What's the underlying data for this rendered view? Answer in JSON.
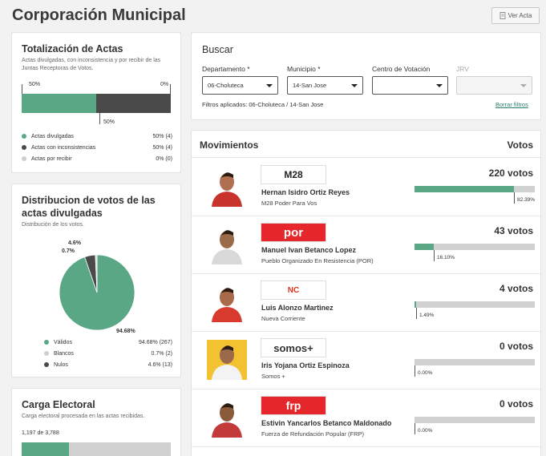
{
  "page": {
    "title": "Corporación Municipal",
    "ver_acta_label": "Ver Acta"
  },
  "totalizacion": {
    "title": "Totalización de Actas",
    "subtitle": "Actas divulgadas, con inconsistencia y por recibir de las Juntas Receptoras de Votos.",
    "label_top_left": "50%",
    "label_top_right": "0%",
    "label_bottom": "50%",
    "bar_fractions": {
      "divulgadas": 0.5,
      "inconsistencias": 0.5,
      "por_recibir": 0.0
    },
    "legend": [
      {
        "label": "Actas divulgadas",
        "value": "50% (4)",
        "color": "#5aa785"
      },
      {
        "label": "Actas con inconsistencias",
        "value": "50% (4)",
        "color": "#4a4a4a"
      },
      {
        "label": "Actas por recibir",
        "value": "0% (0)",
        "color": "#cfcfcf"
      }
    ]
  },
  "distribucion": {
    "title": "Distribucion de votos de las actas divulgadas",
    "subtitle": "Distribución de los votos.",
    "pie_labels": {
      "validos": "94.68%",
      "blancos": "0.7%",
      "nulos": "4.6%"
    },
    "legend": [
      {
        "label": "Válidos",
        "value": "94.68% (267)",
        "color": "#5aa785"
      },
      {
        "label": "Blancos",
        "value": "0.7% (2)",
        "color": "#cfcfcf"
      },
      {
        "label": "Nulos",
        "value": "4.6% (13)",
        "color": "#4a4a4a"
      }
    ]
  },
  "chart_data": {
    "type": "pie",
    "title": "Distribucion de votos de las actas divulgadas",
    "labels": [
      "Válidos",
      "Blancos",
      "Nulos"
    ],
    "values": [
      94.68,
      0.7,
      4.6
    ],
    "counts": [
      267,
      2,
      13
    ],
    "colors": [
      "#5aa785",
      "#d1d1d1",
      "#4a4a4a"
    ]
  },
  "carga": {
    "title": "Carga Electoral",
    "subtitle": "Carga electoral procesada en las actas recibidas.",
    "count_text": "1,197 de 3,788",
    "progress_fraction": 0.316
  },
  "buscar": {
    "title": "Buscar",
    "fields": [
      {
        "label": "Departamento *",
        "value": "06-Choluteca"
      },
      {
        "label": "Municipio *",
        "value": "14-San Jose"
      },
      {
        "label": "Centro de Votación",
        "value": ""
      },
      {
        "label": "JRV",
        "value": ""
      }
    ],
    "filtros_label": "Filtros aplicados:",
    "filtros_value": "06-Choluteca / 14-San Jose",
    "borrar_label": "Borrar filtros"
  },
  "movimientos": {
    "title": "Movimientos",
    "votes_header": "Votos",
    "rows": [
      {
        "candidate": "Hernan Isidro Ortiz Reyes",
        "party": "M28 Poder Para Vos",
        "logo_text": "M28",
        "votes": "220 votos",
        "pct_label": "82.39%",
        "fraction": 0.8239
      },
      {
        "candidate": "Manuel Ivan Betanco Lopez",
        "party": "Pueblo Organizado En Resistencia (POR)",
        "logo_text": "por",
        "votes": "43 votos",
        "pct_label": "16.10%",
        "fraction": 0.161
      },
      {
        "candidate": "Luis Alonzo Martinez",
        "party": "Nueva Corriente",
        "logo_text": "NC",
        "votes": "4 votos",
        "pct_label": "1.49%",
        "fraction": 0.0149
      },
      {
        "candidate": "Iris Yojana Ortiz Espinoza",
        "party": "Somos +",
        "logo_text": "somos+",
        "votes": "0 votos",
        "pct_label": "0.00%",
        "fraction": 0.0
      },
      {
        "candidate": "Estivin Yancarlos Betanco Maldonado",
        "party": "Fuerza de Refundación Popular (FRP)",
        "logo_text": "frp",
        "votes": "0 votos",
        "pct_label": "0.00%",
        "fraction": 0.0
      }
    ]
  }
}
